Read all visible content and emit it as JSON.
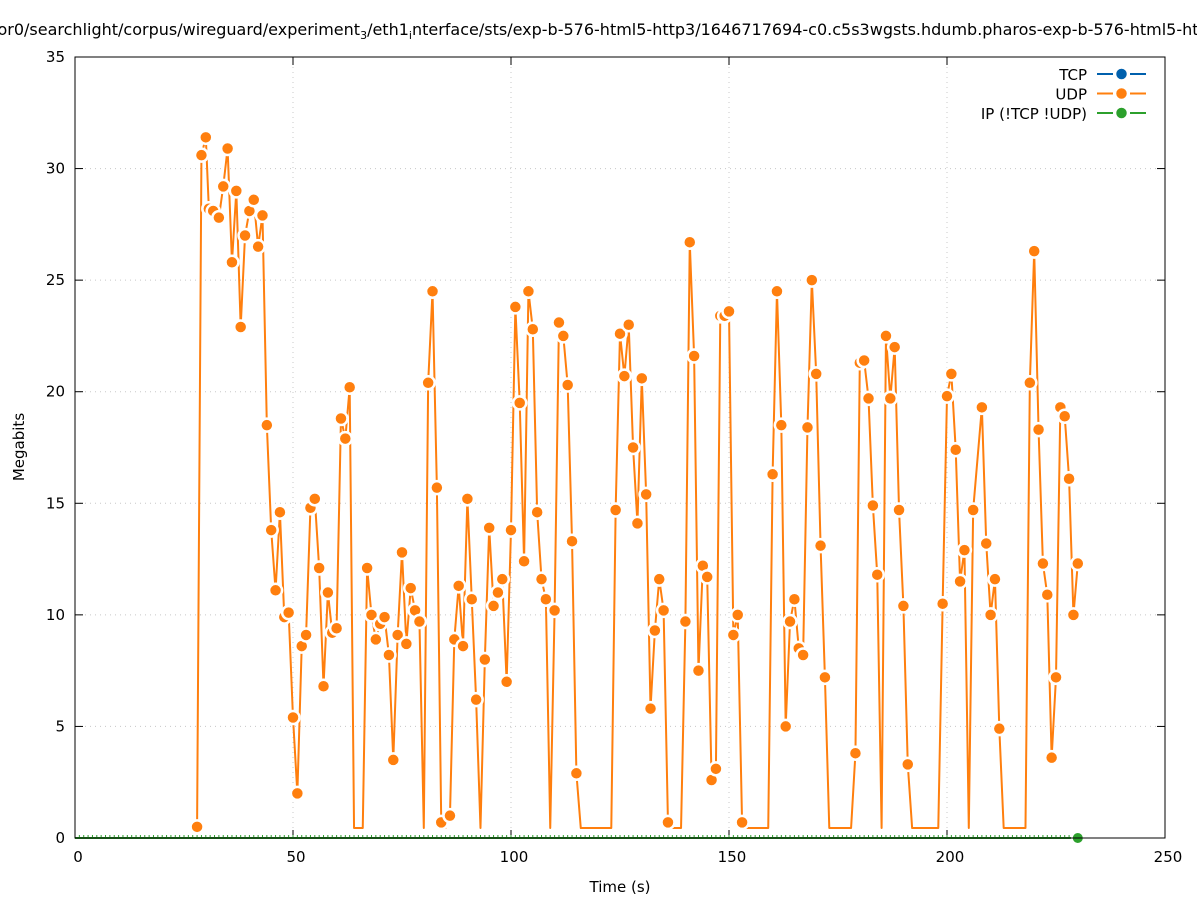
{
  "chart_data": {
    "type": "line",
    "title_parts": [
      "or0/searchlight/corpus/wireguard/experiment",
      "3",
      "/eth1",
      "i",
      "nterface/sts/exp-b-576-html5-http3/1646717694-c0.c5s3wgsts.hdumb.pharos-exp-b-576-html5-ht"
    ],
    "xlabel": "Time (s)",
    "ylabel": "Megabits",
    "xlim": [
      0,
      250
    ],
    "ylim": [
      0,
      35
    ],
    "xticks": [
      "0",
      "50",
      "100",
      "150",
      "200",
      "250"
    ],
    "yticks": [
      "0",
      "5",
      "10",
      "15",
      "20",
      "25",
      "30",
      "35"
    ],
    "grid": true,
    "legend_position": "top-right",
    "series": [
      {
        "name": "TCP",
        "color": "#0060ad",
        "points": []
      },
      {
        "name": "UDP",
        "color": "#ff7f0e",
        "points": [
          [
            28,
            0.5
          ],
          [
            29,
            30.6
          ],
          [
            30,
            31.4
          ],
          [
            30.7,
            28.2
          ],
          [
            31.7,
            28.1
          ],
          [
            33,
            27.8
          ],
          [
            34,
            29.2
          ],
          [
            35,
            30.9
          ],
          [
            36,
            25.8
          ],
          [
            37,
            29.0
          ],
          [
            38,
            22.9
          ],
          [
            39,
            27.0
          ],
          [
            40,
            28.1
          ],
          [
            41,
            28.6
          ],
          [
            42,
            26.5
          ],
          [
            43,
            27.9
          ],
          [
            44,
            18.5
          ],
          [
            45,
            13.8
          ],
          [
            46,
            11.1
          ],
          [
            47,
            14.6
          ],
          [
            48,
            9.9
          ],
          [
            49,
            10.1
          ],
          [
            50,
            5.4
          ],
          [
            51,
            2.0
          ],
          [
            52,
            8.6
          ],
          [
            53,
            9.1
          ],
          [
            54,
            14.8
          ],
          [
            55,
            15.2
          ],
          [
            56,
            12.1
          ],
          [
            57,
            6.8
          ],
          [
            58,
            11.0
          ],
          [
            59,
            9.2
          ],
          [
            60,
            9.4
          ],
          [
            61,
            18.8
          ],
          [
            62,
            17.9
          ],
          [
            63,
            20.2
          ],
          [
            64,
            0
          ],
          [
            65,
            0
          ],
          [
            66,
            0
          ],
          [
            67,
            12.1
          ],
          [
            68,
            10.0
          ],
          [
            69,
            8.9
          ],
          [
            70,
            9.6
          ],
          [
            71,
            9.9
          ],
          [
            72,
            8.2
          ],
          [
            73,
            3.5
          ],
          [
            74,
            9.1
          ],
          [
            75,
            12.8
          ],
          [
            76,
            8.7
          ],
          [
            77,
            11.2
          ],
          [
            78,
            10.2
          ],
          [
            79,
            9.7
          ],
          [
            80,
            0
          ],
          [
            81,
            20.4
          ],
          [
            82,
            24.5
          ],
          [
            83,
            15.7
          ],
          [
            84,
            0.7
          ],
          [
            85,
            0
          ],
          [
            86,
            1.0
          ],
          [
            87,
            8.9
          ],
          [
            88,
            11.3
          ],
          [
            89,
            8.6
          ],
          [
            90,
            15.2
          ],
          [
            91,
            10.7
          ],
          [
            92,
            6.2
          ],
          [
            93,
            0
          ],
          [
            94,
            8.0
          ],
          [
            95,
            13.9
          ],
          [
            96,
            10.4
          ],
          [
            97,
            11.0
          ],
          [
            98,
            11.6
          ],
          [
            99,
            7.0
          ],
          [
            100,
            13.8
          ],
          [
            101,
            23.8
          ],
          [
            102,
            19.5
          ],
          [
            103,
            12.4
          ],
          [
            104,
            24.5
          ],
          [
            105,
            22.8
          ],
          [
            106,
            14.6
          ],
          [
            107,
            11.6
          ],
          [
            108,
            10.7
          ],
          [
            109,
            0
          ],
          [
            110,
            10.2
          ],
          [
            111,
            23.1
          ],
          [
            112,
            22.5
          ],
          [
            113,
            20.3
          ],
          [
            114,
            13.3
          ],
          [
            115,
            2.9
          ],
          [
            116,
            0
          ],
          [
            123,
            0
          ],
          [
            124,
            14.7
          ],
          [
            125,
            22.6
          ],
          [
            126,
            20.7
          ],
          [
            127,
            23.0
          ],
          [
            128,
            17.5
          ],
          [
            129,
            14.1
          ],
          [
            130,
            20.6
          ],
          [
            131,
            15.4
          ],
          [
            132,
            5.8
          ],
          [
            133,
            9.3
          ],
          [
            134,
            11.6
          ],
          [
            135,
            10.2
          ],
          [
            136,
            0.7
          ],
          [
            137,
            0
          ],
          [
            139,
            0
          ],
          [
            140,
            9.7
          ],
          [
            141,
            26.7
          ],
          [
            142,
            21.6
          ],
          [
            143,
            7.5
          ],
          [
            144,
            12.2
          ],
          [
            145,
            11.7
          ],
          [
            146,
            2.6
          ],
          [
            147,
            3.1
          ],
          [
            148,
            23.4
          ],
          [
            149,
            23.4
          ],
          [
            150,
            23.6
          ],
          [
            151,
            9.1
          ],
          [
            152,
            10.0
          ],
          [
            153,
            0.7
          ],
          [
            154,
            0
          ],
          [
            159,
            0
          ],
          [
            160,
            16.3
          ],
          [
            161,
            24.5
          ],
          [
            162,
            18.5
          ],
          [
            163,
            5.0
          ],
          [
            164,
            9.7
          ],
          [
            165,
            10.7
          ],
          [
            166,
            8.5
          ],
          [
            167,
            8.2
          ],
          [
            168,
            18.4
          ],
          [
            169,
            25.0
          ],
          [
            170,
            20.8
          ],
          [
            171,
            13.1
          ],
          [
            172,
            7.2
          ],
          [
            173,
            0
          ],
          [
            178,
            0
          ],
          [
            179,
            3.8
          ],
          [
            180,
            21.3
          ],
          [
            181,
            21.4
          ],
          [
            182,
            19.7
          ],
          [
            183,
            14.9
          ],
          [
            184,
            11.8
          ],
          [
            185,
            0
          ],
          [
            186,
            22.5
          ],
          [
            187,
            19.7
          ],
          [
            188,
            22.0
          ],
          [
            189,
            14.7
          ],
          [
            190,
            10.4
          ],
          [
            191,
            3.3
          ],
          [
            192,
            0
          ],
          [
            198,
            0
          ],
          [
            199,
            10.5
          ],
          [
            200,
            19.8
          ],
          [
            201,
            20.8
          ],
          [
            202,
            17.4
          ],
          [
            203,
            11.5
          ],
          [
            204,
            12.9
          ],
          [
            205,
            0
          ],
          [
            206,
            14.7
          ],
          [
            208,
            19.3
          ],
          [
            209,
            13.2
          ],
          [
            210,
            10.0
          ],
          [
            211,
            11.6
          ],
          [
            212,
            4.9
          ],
          [
            213,
            0
          ],
          [
            218,
            0
          ],
          [
            219,
            20.4
          ],
          [
            220,
            26.3
          ],
          [
            221,
            18.3
          ],
          [
            222,
            12.3
          ],
          [
            223,
            10.9
          ],
          [
            224,
            3.6
          ],
          [
            225,
            7.2
          ],
          [
            226,
            19.3
          ],
          [
            227,
            18.9
          ],
          [
            228,
            16.1
          ],
          [
            229,
            10.0
          ],
          [
            230,
            12.3
          ]
        ]
      },
      {
        "name": "IP (!TCP  !UDP)",
        "color": "#2ca02c",
        "points": [
          [
            0,
            0
          ],
          [
            230,
            0
          ]
        ],
        "marker_at": [
          230,
          0
        ]
      }
    ]
  }
}
